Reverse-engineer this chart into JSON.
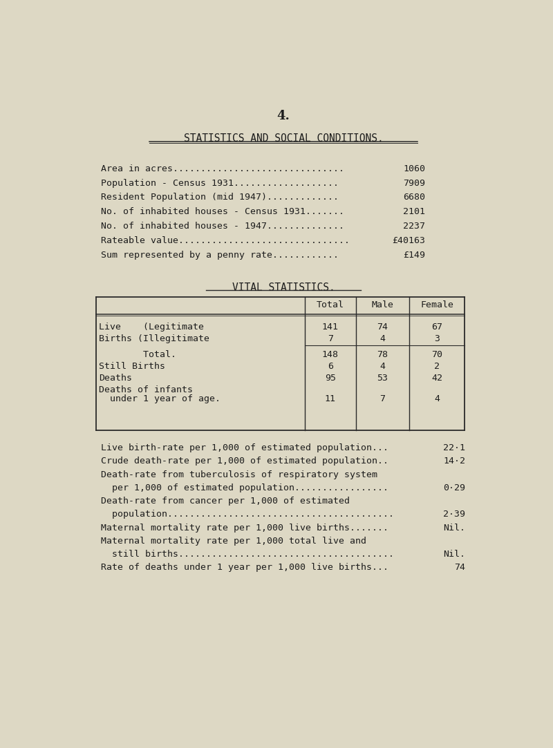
{
  "bg_color": "#ddd8c4",
  "page_number": "4.",
  "main_title": "STATISTICS AND SOCIAL CONDITIONS.",
  "social_rows": [
    {
      "label": "Area in acres",
      "dots": "...............................",
      "value": "1060"
    },
    {
      "label": "Population - Census 1931",
      "dots": "...................",
      "value": "7909"
    },
    {
      "label": "Resident Population (mid 1947)",
      "dots": ".............",
      "value": "6680"
    },
    {
      "label": "No. of inhabited houses - Census 1931.......",
      "dots": "",
      "value": "2101"
    },
    {
      "label": "No. of inhabited houses - 1947.............",
      "dots": "",
      "value": "2237"
    },
    {
      "label": "Rateable value",
      "dots": ".............................",
      "value": "£40163"
    },
    {
      "label": "Sum represented by a penny rate............",
      "dots": "",
      "value": "£149"
    }
  ],
  "vital_title": "VITAL STATISTICS.",
  "table_col_headers": [
    "Total",
    "Male",
    "Female"
  ],
  "table_rows": [
    {
      "label": "Live    (Legitimate",
      "total": "141",
      "male": "74",
      "female": "67",
      "sep_after": false
    },
    {
      "label": "Births (Illegitimate",
      "total": "7",
      "male": "4",
      "female": "3",
      "sep_after": true
    },
    {
      "label": "        Total.",
      "total": "148",
      "male": "78",
      "female": "70",
      "sep_after": false
    },
    {
      "label": "Still Births",
      "total": "6",
      "male": "4",
      "female": "2",
      "sep_after": false
    },
    {
      "label": "Deaths",
      "total": "95",
      "male": "53",
      "female": "42",
      "sep_after": false
    },
    {
      "label": "Deaths of infants",
      "total": "",
      "male": "",
      "female": "",
      "sep_after": false
    },
    {
      "label": "  under 1 year of age.",
      "total": "11",
      "male": "7",
      "female": "4",
      "sep_after": false
    }
  ],
  "vital_stats_lines": [
    {
      "text": "Live birth-rate per 1,000 of estimated population...",
      "value": "22·1",
      "indent": false
    },
    {
      "text": "Crude death-rate per 1,000 of estimated population..",
      "value": "14·2",
      "indent": false
    },
    {
      "text": "Death-rate from tuberculosis of respiratory system",
      "value": "",
      "indent": false
    },
    {
      "text": "  per 1,000 of estimated population...............",
      "value": "0·29",
      "indent": false
    },
    {
      "text": "Death-rate from cancer per 1,000 of estimated",
      "value": "",
      "indent": false
    },
    {
      "text": "  population.......................................",
      "value": "2·39",
      "indent": false
    },
    {
      "text": "Maternal mortality rate per 1,000 live births.......",
      "value": "Nil.",
      "indent": false
    },
    {
      "text": "Maternal mortality rate per 1,000 total live and",
      "value": "",
      "indent": false
    },
    {
      "text": "  still births.......................................",
      "value": "Nil.",
      "indent": false
    },
    {
      "text": "Rate of deaths under 1 year per 1,000 live births...",
      "value": "74",
      "indent": false
    }
  ],
  "font_color": "#1c1c1c",
  "line_color": "#2a2a2a",
  "title_fontsize": 10.5,
  "body_fontsize": 9.5,
  "table_fontsize": 9.5,
  "page_num_fontsize": 13
}
